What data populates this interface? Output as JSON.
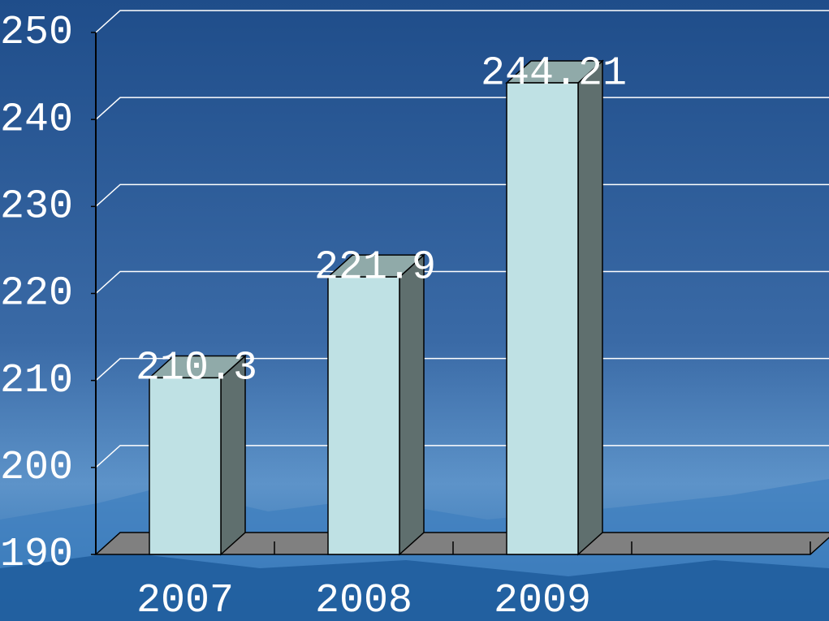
{
  "chart_data": {
    "type": "bar",
    "categories": [
      "2007",
      "2008",
      "2009",
      null
    ],
    "values": [
      210.3,
      221.9,
      244.21,
      null
    ],
    "color": "#bfe1e4",
    "ylim": [
      190,
      250
    ],
    "yticks": [
      190,
      200,
      210,
      220,
      230,
      240,
      250
    ],
    "grid": true
  }
}
